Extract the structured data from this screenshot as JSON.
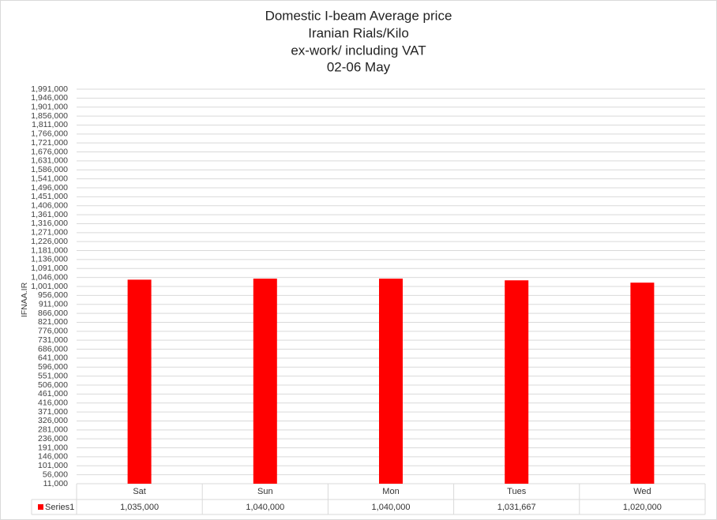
{
  "chart_data": {
    "type": "bar",
    "title": [
      "Domestic I-beam Average price",
      "Iranian Rials/Kilo",
      "ex-work/ including VAT",
      "02-06 May"
    ],
    "ylabel": "IFNAA.IR",
    "categories": [
      "Sat",
      "Sun",
      "Mon",
      "Tues",
      "Wed"
    ],
    "series": [
      {
        "name": "Series1",
        "color": "#ff0000",
        "values": [
          1035000,
          1040000,
          1040000,
          1031667,
          1020000
        ],
        "value_labels": [
          "1,035,000",
          "1,040,000",
          "1,040,000",
          "1,031,667",
          "1,020,000"
        ]
      }
    ],
    "ylim": [
      11000,
      1991000
    ],
    "yticks": [
      {
        "value": 11000,
        "label": "11,000"
      },
      {
        "value": 56000,
        "label": "56,000"
      },
      {
        "value": 101000,
        "label": "101,000"
      },
      {
        "value": 146000,
        "label": "146,000"
      },
      {
        "value": 191000,
        "label": "191,000"
      },
      {
        "value": 236000,
        "label": "236,000"
      },
      {
        "value": 281000,
        "label": "281,000"
      },
      {
        "value": 326000,
        "label": "326,000"
      },
      {
        "value": 371000,
        "label": "371,000"
      },
      {
        "value": 416000,
        "label": "416,000"
      },
      {
        "value": 461000,
        "label": "461,000"
      },
      {
        "value": 506000,
        "label": "506,000"
      },
      {
        "value": 551000,
        "label": "551,000"
      },
      {
        "value": 596000,
        "label": "596,000"
      },
      {
        "value": 641000,
        "label": "641,000"
      },
      {
        "value": 686000,
        "label": "686,000"
      },
      {
        "value": 731000,
        "label": "731,000"
      },
      {
        "value": 776000,
        "label": "776,000"
      },
      {
        "value": 821000,
        "label": "821,000"
      },
      {
        "value": 866000,
        "label": "866,000"
      },
      {
        "value": 911000,
        "label": "911,000"
      },
      {
        "value": 956000,
        "label": "956,000"
      },
      {
        "value": 1001000,
        "label": "1,001,000"
      },
      {
        "value": 1046000,
        "label": "1,046,000"
      },
      {
        "value": 1091000,
        "label": "1,091,000"
      },
      {
        "value": 1136000,
        "label": "1,136,000"
      },
      {
        "value": 1181000,
        "label": "1,181,000"
      },
      {
        "value": 1226000,
        "label": "1,226,000"
      },
      {
        "value": 1271000,
        "label": "1,271,000"
      },
      {
        "value": 1316000,
        "label": "1,316,000"
      },
      {
        "value": 1361000,
        "label": "1,361,000"
      },
      {
        "value": 1406000,
        "label": "1,406,000"
      },
      {
        "value": 1451000,
        "label": "1,451,000"
      },
      {
        "value": 1496000,
        "label": "1,496,000"
      },
      {
        "value": 1541000,
        "label": "1,541,000"
      },
      {
        "value": 1586000,
        "label": "1,586,000"
      },
      {
        "value": 1631000,
        "label": "1,631,000"
      },
      {
        "value": 1676000,
        "label": "1,676,000"
      },
      {
        "value": 1721000,
        "label": "1,721,000"
      },
      {
        "value": 1766000,
        "label": "1,766,000"
      },
      {
        "value": 1811000,
        "label": "1,811,000"
      },
      {
        "value": 1856000,
        "label": "1,856,000"
      },
      {
        "value": 1901000,
        "label": "1,901,000"
      },
      {
        "value": 1946000,
        "label": "1,946,000"
      },
      {
        "value": 1991000,
        "label": "1,991,000"
      }
    ],
    "grid": true
  }
}
